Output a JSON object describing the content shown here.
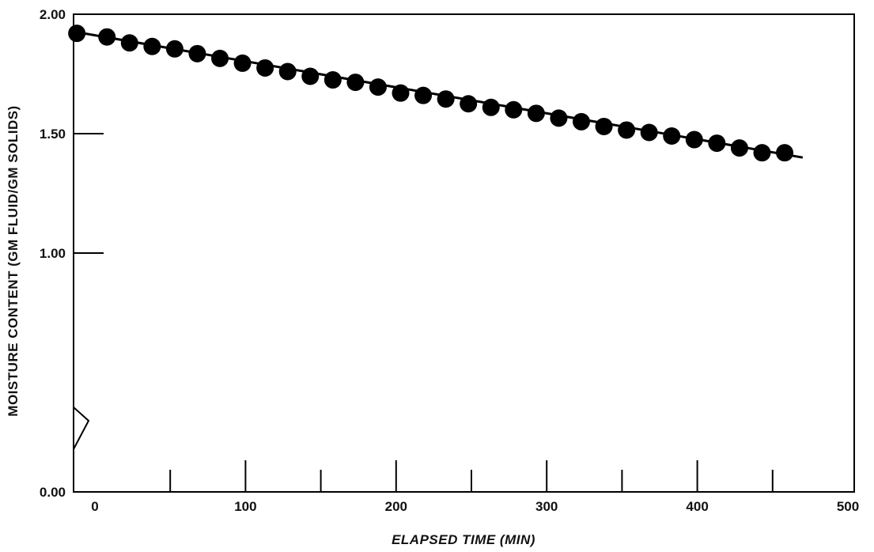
{
  "chart_data": {
    "type": "scatter",
    "xlabel": "ELAPSED TIME (MIN)",
    "ylabel": "MOISTURE CONTENT (GM FLUID/GM SOLIDS)",
    "xlim": [
      -15,
      500
    ],
    "ylim": [
      0,
      2.0
    ],
    "y_axis_break": true,
    "x_ticks": [
      0,
      100,
      200,
      300,
      400,
      500
    ],
    "x_tick_labels": [
      "0",
      "100",
      "200",
      "300",
      "400",
      "500"
    ],
    "x_minor_ticks": [
      50,
      150,
      250,
      350,
      450
    ],
    "y_ticks": [
      0.0,
      1.0,
      1.5,
      2.0
    ],
    "y_tick_labels": [
      "0.00",
      "1.00",
      "1.50",
      "2.00"
    ],
    "grid": false,
    "series": [
      {
        "x": [
          -12,
          8,
          23,
          38,
          53,
          68,
          83,
          98,
          113,
          128,
          143,
          158,
          173,
          188,
          203,
          218,
          233,
          248,
          263,
          278,
          293,
          308,
          323,
          338,
          353,
          368,
          383,
          398,
          413,
          428,
          443,
          458
        ],
        "y": [
          1.92,
          1.905,
          1.88,
          1.865,
          1.855,
          1.835,
          1.815,
          1.795,
          1.775,
          1.76,
          1.74,
          1.725,
          1.715,
          1.695,
          1.67,
          1.66,
          1.645,
          1.625,
          1.61,
          1.6,
          1.585,
          1.565,
          1.55,
          1.53,
          1.515,
          1.505,
          1.49,
          1.475,
          1.46,
          1.44,
          1.42,
          1.42
        ]
      }
    ],
    "fit_line": {
      "x": [
        -12,
        470
      ],
      "y": [
        1.925,
        1.4
      ]
    }
  }
}
